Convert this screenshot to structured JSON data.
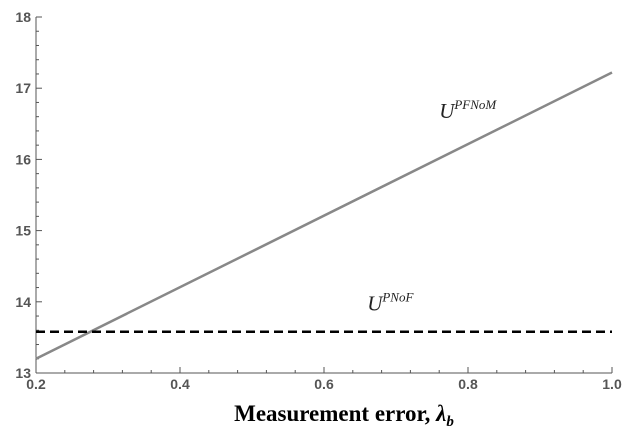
{
  "chart_data": {
    "type": "line",
    "title": "",
    "xlabel": "Measurement error, ",
    "xlabel_symbol": "λ",
    "xlabel_subscript": "b",
    "ylabel": "",
    "xlim": [
      0.2,
      1.0
    ],
    "ylim": [
      13,
      18
    ],
    "xticks": [
      0.2,
      0.4,
      0.6,
      0.8,
      1.0
    ],
    "xtick_labels": [
      "0.2",
      "0.4",
      "0.6",
      "0.8",
      "1.0"
    ],
    "yticks": [
      13,
      14,
      15,
      16,
      17,
      18
    ],
    "ytick_labels": [
      "13",
      "14",
      "15",
      "16",
      "17",
      "18"
    ],
    "grid": false,
    "series": [
      {
        "x": [
          0.2,
          1.0
        ],
        "y": [
          13.2,
          17.22
        ],
        "color": "#888888",
        "style": "solid"
      },
      {
        "x": [
          0.2,
          1.0
        ],
        "y": [
          13.58,
          13.58
        ],
        "color": "#000000",
        "style": "dashed"
      }
    ],
    "annotations": [
      {
        "base": "U",
        "sup": "PFNoM",
        "x": 0.76,
        "y": 16.58
      },
      {
        "base": "U",
        "sup": "PNoF",
        "x": 0.66,
        "y": 13.88
      }
    ]
  }
}
